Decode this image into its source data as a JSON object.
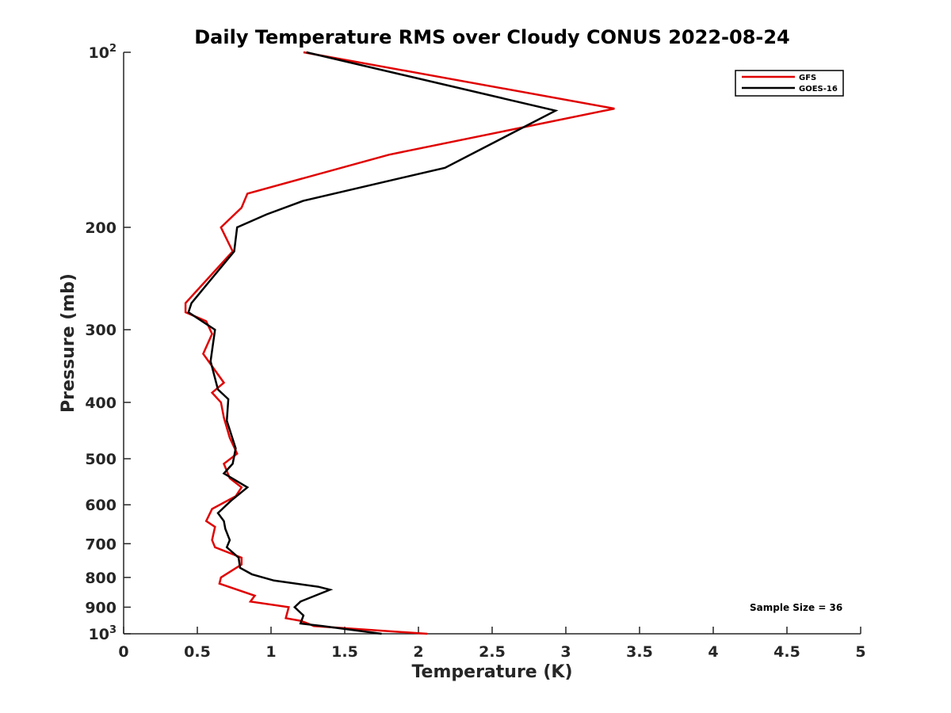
{
  "chart_data": {
    "type": "line",
    "title": "Daily Temperature RMS over Cloudy CONUS 2022-08-24",
    "xlabel": "Temperature (K)",
    "ylabel": "Pressure (mb)",
    "xlim": [
      0,
      5
    ],
    "ylim": [
      100,
      1000
    ],
    "y_scale": "log",
    "y_reversed": true,
    "grid": false,
    "legend_position": "top-right",
    "x_ticks": [
      "0",
      "0.5",
      "1",
      "1.5",
      "2",
      "2.5",
      "3",
      "3.5",
      "4",
      "4.5",
      "5"
    ],
    "y_ticks": [
      {
        "value": 100,
        "base": "10",
        "exp": "2"
      },
      {
        "value": 200,
        "label": "200"
      },
      {
        "value": 300,
        "label": "300"
      },
      {
        "value": 400,
        "label": "400"
      },
      {
        "value": 500,
        "label": "500"
      },
      {
        "value": 600,
        "label": "600"
      },
      {
        "value": 700,
        "label": "700"
      },
      {
        "value": 800,
        "label": "800"
      },
      {
        "value": 900,
        "label": "900"
      },
      {
        "value": 1000,
        "base": "10",
        "exp": "3"
      }
    ],
    "annotation": "Sample Size = 36",
    "series": [
      {
        "name": "GFS",
        "color": "#e00000",
        "points": [
          [
            1.22,
            100
          ],
          [
            3.33,
            125
          ],
          [
            1.8,
            150
          ],
          [
            0.84,
            175
          ],
          [
            0.8,
            185
          ],
          [
            0.66,
            200
          ],
          [
            0.74,
            220
          ],
          [
            0.54,
            250
          ],
          [
            0.42,
            270
          ],
          [
            0.42,
            280
          ],
          [
            0.56,
            290
          ],
          [
            0.6,
            305
          ],
          [
            0.54,
            330
          ],
          [
            0.68,
            370
          ],
          [
            0.6,
            385
          ],
          [
            0.66,
            400
          ],
          [
            0.68,
            425
          ],
          [
            0.72,
            460
          ],
          [
            0.77,
            490
          ],
          [
            0.68,
            510
          ],
          [
            0.72,
            540
          ],
          [
            0.8,
            560
          ],
          [
            0.76,
            580
          ],
          [
            0.6,
            610
          ],
          [
            0.56,
            640
          ],
          [
            0.62,
            655
          ],
          [
            0.6,
            690
          ],
          [
            0.62,
            710
          ],
          [
            0.8,
            740
          ],
          [
            0.8,
            760
          ],
          [
            0.66,
            800
          ],
          [
            0.65,
            820
          ],
          [
            0.89,
            860
          ],
          [
            0.86,
            880
          ],
          [
            1.12,
            900
          ],
          [
            1.1,
            940
          ],
          [
            1.2,
            950
          ],
          [
            1.25,
            960
          ],
          [
            1.29,
            970
          ],
          [
            2.06,
            1000
          ]
        ]
      },
      {
        "name": "GOES-16",
        "color": "#000000",
        "points": [
          [
            1.24,
            100
          ],
          [
            2.93,
            126
          ],
          [
            2.18,
            158
          ],
          [
            1.22,
            180
          ],
          [
            0.97,
            190
          ],
          [
            0.77,
            200
          ],
          [
            0.75,
            220
          ],
          [
            0.46,
            270
          ],
          [
            0.44,
            280
          ],
          [
            0.62,
            300
          ],
          [
            0.59,
            340
          ],
          [
            0.64,
            380
          ],
          [
            0.71,
            395
          ],
          [
            0.7,
            430
          ],
          [
            0.76,
            480
          ],
          [
            0.74,
            510
          ],
          [
            0.68,
            530
          ],
          [
            0.84,
            560
          ],
          [
            0.73,
            590
          ],
          [
            0.64,
            620
          ],
          [
            0.68,
            640
          ],
          [
            0.69,
            660
          ],
          [
            0.72,
            690
          ],
          [
            0.7,
            710
          ],
          [
            0.78,
            740
          ],
          [
            0.79,
            770
          ],
          [
            0.87,
            790
          ],
          [
            1.02,
            810
          ],
          [
            1.32,
            830
          ],
          [
            1.4,
            840
          ],
          [
            1.2,
            880
          ],
          [
            1.16,
            900
          ],
          [
            1.22,
            930
          ],
          [
            1.2,
            960
          ],
          [
            1.35,
            970
          ],
          [
            1.75,
            1000
          ]
        ]
      }
    ]
  }
}
